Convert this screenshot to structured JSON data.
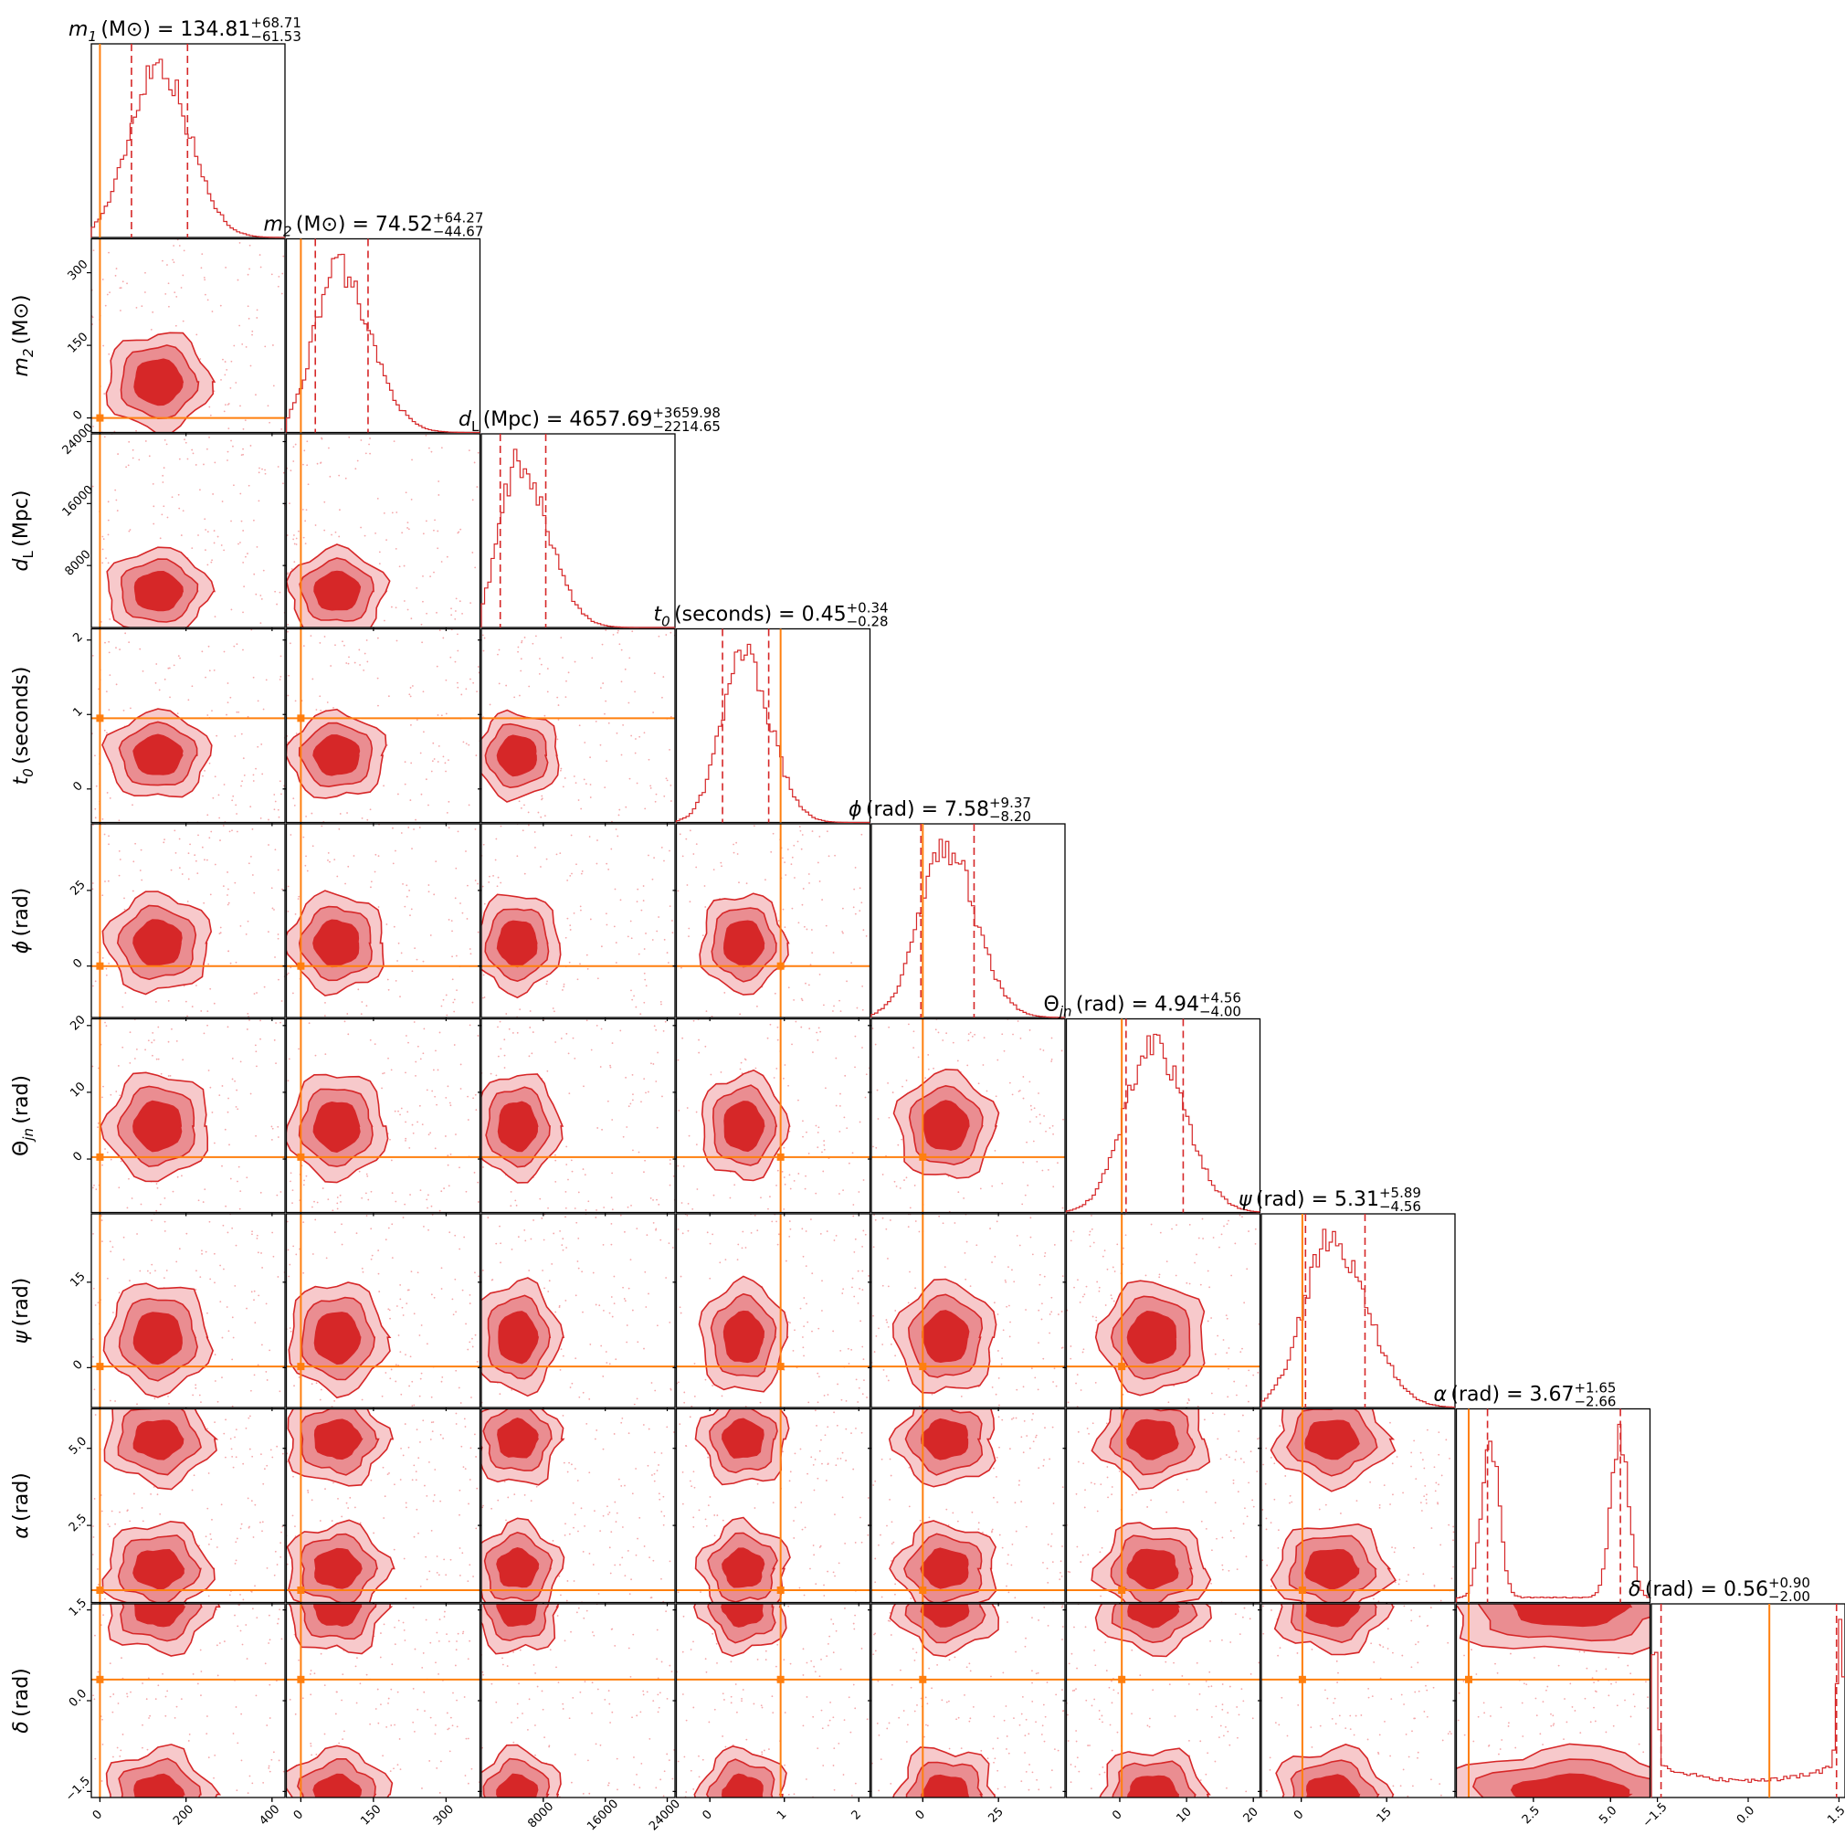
{
  "chart_data": {
    "type": "corner",
    "colors": {
      "posterior": "#d62728",
      "truth": "#ff7f0e"
    },
    "parameters": [
      {
        "key": "m1",
        "sym": "m",
        "sub": "1",
        "unit": "(M⊙)",
        "mathsym": true,
        "median": "134.81",
        "plus": "+68.71",
        "minus": "−61.53",
        "range": [
          -20,
          430
        ],
        "ticks": [
          0,
          200,
          400
        ],
        "truth": 0,
        "mean": 134.81,
        "sdlo": 61.53,
        "sdhi": 68.71,
        "skew": 0.3
      },
      {
        "key": "m2",
        "sym": "m",
        "sub": "2",
        "unit": "(M⊙)",
        "mathsym": true,
        "median": "74.52",
        "plus": "+64.27",
        "minus": "−44.67",
        "range": [
          -30,
          370
        ],
        "ticks": [
          0,
          150,
          300
        ],
        "truth": 0,
        "mean": 74.52,
        "sdlo": 44.67,
        "sdhi": 64.27,
        "skew": 0.5
      },
      {
        "key": "dL",
        "sym": "d",
        "sub": "L",
        "unit": "(Mpc)",
        "mathsym": true,
        "median": "4657.69",
        "plus": "+3659.98",
        "minus": "−2214.65",
        "range": [
          0,
          25000
        ],
        "ticks": [
          8000,
          16000,
          24000
        ],
        "truth": null,
        "mean": 4657.69,
        "sdlo": 2214.65,
        "sdhi": 3659.98,
        "skew": 0.9
      },
      {
        "key": "t0",
        "sym": "t",
        "sub": "0",
        "unit": "(seconds)",
        "mathsym": true,
        "median": "0.45",
        "plus": "+0.34",
        "minus": "−0.28",
        "range": [
          -0.45,
          2.15
        ],
        "ticks": [
          0,
          1,
          2
        ],
        "truth": 0.95,
        "mean": 0.45,
        "sdlo": 0.28,
        "sdhi": 0.34,
        "skew": 0.2
      },
      {
        "key": "phi",
        "sym": "ϕ",
        "sub": "",
        "unit": "(rad)",
        "mathsym": true,
        "median": "7.58",
        "plus": "+9.37",
        "minus": "−8.20",
        "range": [
          -17,
          47
        ],
        "ticks": [
          0,
          25
        ],
        "truth": 0,
        "mean": 7.58,
        "sdlo": 8.2,
        "sdhi": 9.37,
        "skew": 0.1
      },
      {
        "key": "theta",
        "sym": "Θ",
        "sub": "jn",
        "unit": "(rad)",
        "mathsym": false,
        "median": "4.94",
        "plus": "+4.56",
        "minus": "−4.00",
        "range": [
          -8,
          21
        ],
        "ticks": [
          0,
          10,
          20
        ],
        "truth": 0.3,
        "mean": 4.94,
        "sdlo": 4.0,
        "sdhi": 4.56,
        "skew": 0.2
      },
      {
        "key": "psi",
        "sym": "ψ",
        "sub": "",
        "unit": "(rad)",
        "mathsym": true,
        "median": "5.31",
        "plus": "+5.89",
        "minus": "−4.56",
        "range": [
          -7,
          27
        ],
        "ticks": [
          0,
          15
        ],
        "truth": 0.2,
        "mean": 5.31,
        "sdlo": 4.56,
        "sdhi": 5.89,
        "skew": 0.3
      },
      {
        "key": "alpha",
        "sym": "α",
        "sub": "",
        "unit": "(rad)",
        "mathsym": true,
        "median": "3.67",
        "plus": "+1.65",
        "minus": "−2.66",
        "range": [
          0,
          6.28
        ],
        "ticks": [
          2.5,
          5.0
        ],
        "ticklabels": [
          "2.5",
          "5.0"
        ],
        "truth": 0.4,
        "mean": 3.67,
        "sdlo": 2.66,
        "sdhi": 1.65,
        "skew": 0,
        "bimodal": [
          1.1,
          5.3
        ]
      },
      {
        "key": "delta",
        "sym": "δ",
        "sub": "",
        "unit": "(rad)",
        "mathsym": true,
        "median": "0.56",
        "plus": "+0.90",
        "minus": "−2.00",
        "range": [
          -1.6,
          1.6
        ],
        "ticks": [
          -1.5,
          0.0,
          1.5
        ],
        "ticklabels": [
          "−1.5",
          "0.0",
          "1.5"
        ],
        "truth": 0.35,
        "mean": 0.56,
        "sdlo": 2.0,
        "sdhi": 0.9,
        "skew": 0,
        "edges": true
      }
    ]
  }
}
